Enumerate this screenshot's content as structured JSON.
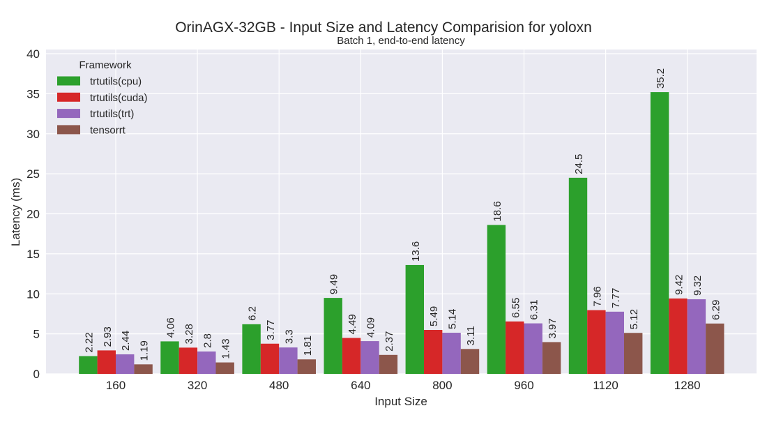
{
  "chart_data": {
    "type": "bar",
    "title": "OrinAGX-32GB - Input Size and Latency Comparision for yoloxn",
    "subtitle": "Batch 1, end-to-end latency",
    "xlabel": "Input Size",
    "ylabel": "Latency (ms)",
    "ylim": [
      0,
      40
    ],
    "yticks": [
      0,
      5,
      10,
      15,
      20,
      25,
      30,
      35,
      40
    ],
    "grid": true,
    "legend": {
      "title": "Framework",
      "placement": "top-left"
    },
    "categories": [
      "160",
      "320",
      "480",
      "640",
      "800",
      "960",
      "1120",
      "1280"
    ],
    "series": [
      {
        "name": "trtutils(cpu)",
        "color": "#2ca02c",
        "values": [
          2.22,
          4.06,
          6.2,
          9.49,
          13.6,
          18.6,
          24.5,
          35.2
        ],
        "labels": [
          "2.22",
          "4.06",
          "6.2",
          "9.49",
          "13.6",
          "18.6",
          "24.5",
          "35.2"
        ]
      },
      {
        "name": "trtutils(cuda)",
        "color": "#d62728",
        "values": [
          2.93,
          3.28,
          3.77,
          4.49,
          5.49,
          6.55,
          7.96,
          9.42
        ],
        "labels": [
          "2.93",
          "3.28",
          "3.77",
          "4.49",
          "5.49",
          "6.55",
          "7.96",
          "9.42"
        ]
      },
      {
        "name": "trtutils(trt)",
        "color": "#9467bd",
        "values": [
          2.44,
          2.8,
          3.3,
          4.09,
          5.14,
          6.31,
          7.77,
          9.32
        ],
        "labels": [
          "2.44",
          "2.8",
          "3.3",
          "4.09",
          "5.14",
          "6.31",
          "7.77",
          "9.32"
        ]
      },
      {
        "name": "tensorrt",
        "color": "#8c564b",
        "values": [
          1.19,
          1.43,
          1.81,
          2.37,
          3.11,
          3.97,
          5.12,
          6.29
        ],
        "labels": [
          "1.19",
          "1.43",
          "1.81",
          "2.37",
          "3.11",
          "3.97",
          "5.12",
          "6.29"
        ]
      }
    ]
  }
}
